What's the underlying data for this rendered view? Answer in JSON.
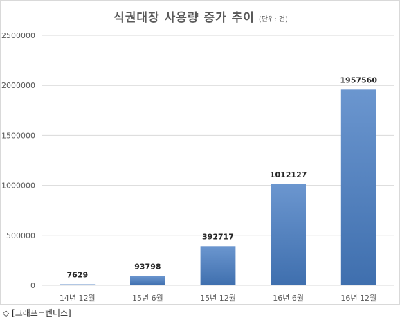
{
  "chart_data": {
    "type": "bar",
    "title": "식권대장 사용량 증가 추이",
    "unit_note": "(단위: 건)",
    "categories": [
      "14년 12월",
      "15년 6월",
      "15년 12월",
      "16년 6월",
      "16년 12월"
    ],
    "values": [
      7629,
      93798,
      392717,
      1012127,
      1957560
    ],
    "data_labels": [
      "7629",
      "93798",
      "392717",
      "1012127",
      "1957560"
    ],
    "y_ticks": [
      0,
      500000,
      1000000,
      1500000,
      2000000,
      2500000
    ],
    "y_tick_labels": [
      "0",
      "500000",
      "1000000",
      "1500000",
      "2000000",
      "2500000"
    ],
    "ylim": [
      0,
      2500000
    ],
    "grid": true,
    "bar_color_top": "#6b96cf",
    "bar_color_bottom": "#3f6fae",
    "grid_color": "#d9d9d9"
  },
  "caption": "◇ [그래프=벤디스]"
}
